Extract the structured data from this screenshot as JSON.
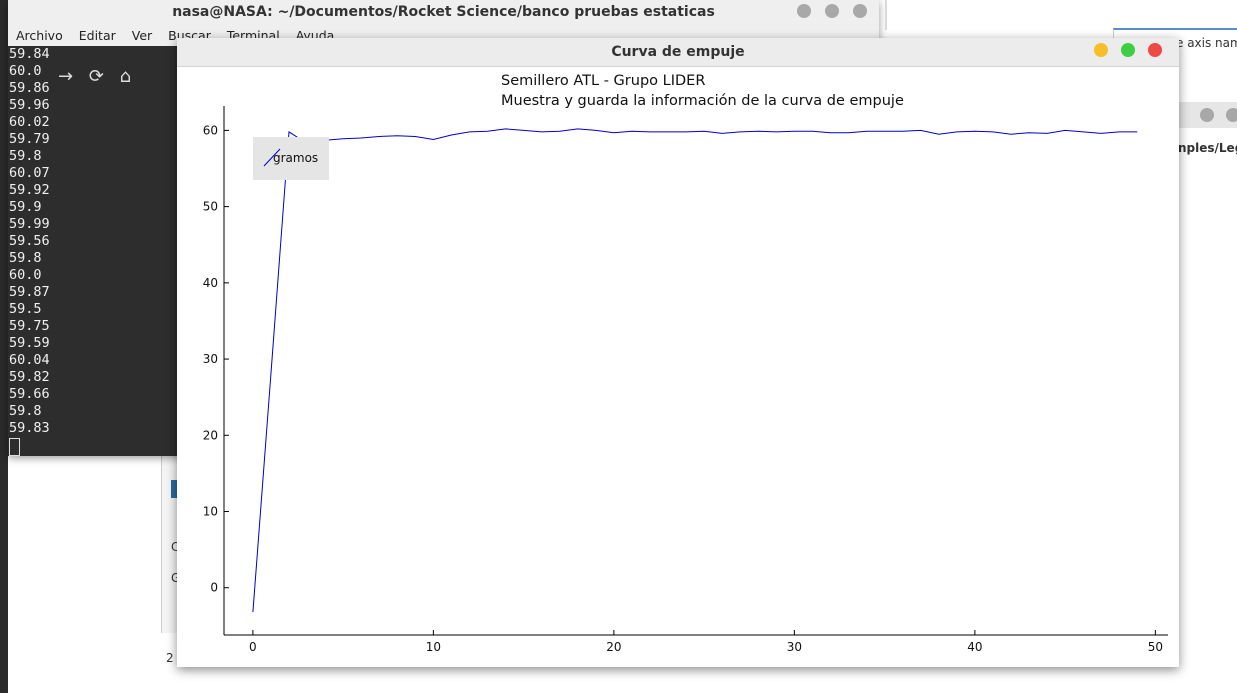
{
  "terminal": {
    "title": "nasa@NASA: ~/Documentos/Rocket Science/banco pruebas estaticas",
    "menu": [
      "Archivo",
      "Editar",
      "Ver",
      "Buscar",
      "Terminal",
      "Ayuda"
    ],
    "lines": [
      "59.84",
      "60.0",
      "59.86",
      "59.96",
      "60.02",
      "59.79",
      "59.8",
      "60.07",
      "59.92",
      "59.9",
      "59.99",
      "59.56",
      "59.8",
      "60.0",
      "59.87",
      "59.5",
      "59.75",
      "59.59",
      "60.04",
      "59.82",
      "59.66",
      "59.8",
      "59.83"
    ]
  },
  "background_windows": {
    "right_top_text": "e axis nam",
    "right_mid_text": "nples/Lege",
    "browser_letters": [
      "C",
      "G",
      "2"
    ]
  },
  "plot_window": {
    "title": "Curva de empuje",
    "header_line1": "Semillero ATL - Grupo LIDER",
    "header_line2": "Muestra y guarda la información de la curva de empuje",
    "button_colors": {
      "minimize": "#f5bf2a",
      "maximize": "#3fcd44",
      "close": "#ee4a45"
    }
  },
  "chart_data": {
    "type": "line",
    "series": [
      {
        "name": "gramos",
        "color": "#0000cc",
        "x": [
          0,
          1,
          2,
          3,
          4,
          5,
          6,
          7,
          8,
          9,
          10,
          11,
          12,
          13,
          14,
          15,
          16,
          17,
          18,
          19,
          20,
          21,
          22,
          23,
          24,
          25,
          26,
          27,
          28,
          29,
          30,
          31,
          32,
          33,
          34,
          35,
          36,
          37,
          38,
          39,
          40,
          41,
          42,
          43,
          44,
          45,
          46,
          47,
          48,
          49
        ],
        "y": [
          -3.2,
          28.0,
          59.8,
          58.3,
          58.7,
          58.9,
          59.0,
          59.2,
          59.3,
          59.2,
          58.8,
          59.4,
          59.8,
          59.9,
          60.2,
          60.0,
          59.8,
          59.9,
          60.2,
          60.0,
          59.7,
          59.9,
          59.8,
          59.8,
          59.8,
          59.9,
          59.6,
          59.8,
          59.9,
          59.8,
          59.9,
          59.9,
          59.7,
          59.7,
          59.9,
          59.9,
          59.9,
          60.0,
          59.5,
          59.8,
          59.9,
          59.8,
          59.5,
          59.7,
          59.6,
          60.0,
          59.8,
          59.6,
          59.8,
          59.8
        ]
      }
    ],
    "x_ticks": [
      0,
      10,
      20,
      30,
      40,
      50
    ],
    "y_ticks": [
      0,
      10,
      20,
      30,
      40,
      50,
      60
    ],
    "xlim": [
      -1.6,
      50.7
    ],
    "ylim": [
      -6.2,
      63.2
    ],
    "legend_position": "top-left",
    "grid": false
  }
}
